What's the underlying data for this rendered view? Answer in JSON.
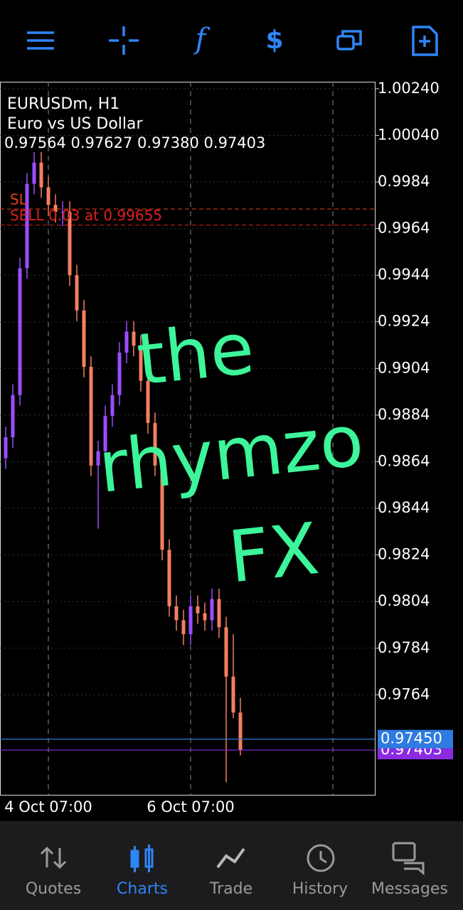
{
  "chart_data": {
    "type": "candlestick",
    "symbol": "EURUSDm, H1",
    "description": "Euro vs US Dollar",
    "ohlc_text": "0.97564 0.97627 0.97380 0.97403",
    "up_color": "#9b4dff",
    "down_color": "#f27f60",
    "grid": true,
    "ylim": [
      0.97211,
      1.0027
    ],
    "yticks": [
      {
        "value": 1.0024,
        "label": "1.00240"
      },
      {
        "value": 1.0004,
        "label": "1.00040"
      },
      0.9984,
      0.9964,
      0.9944,
      0.9924,
      0.9904,
      0.9884,
      0.9864,
      0.9844,
      0.9824,
      0.9804,
      0.9784,
      0.9764
    ],
    "categories": [
      null,
      null,
      null,
      null,
      null,
      null,
      "4 Oct 07:00",
      null,
      null,
      null,
      null,
      null,
      null,
      null,
      null,
      null,
      null,
      null,
      null,
      null,
      null,
      null,
      null,
      null,
      null,
      null,
      "6 Oct 07:00",
      null,
      null,
      null,
      null,
      null,
      null,
      null
    ],
    "candles": [
      [
        0.98655,
        0.9879,
        0.98609,
        0.98745
      ],
      [
        0.98745,
        0.98972,
        0.987,
        0.98926
      ],
      [
        0.98926,
        0.99515,
        0.98881,
        0.9947
      ],
      [
        0.9947,
        0.99878,
        0.99425,
        0.99832
      ],
      [
        0.99832,
        0.99968,
        0.99787,
        0.99923
      ],
      [
        0.99923,
        0.99968,
        0.99772,
        0.99817
      ],
      [
        0.99817,
        0.99863,
        0.99696,
        0.99742
      ],
      [
        0.99742,
        0.99787,
        0.99666,
        0.99712
      ],
      [
        0.99712,
        0.99757,
        0.99651,
        0.99712
      ],
      [
        0.99712,
        0.99757,
        0.99394,
        0.9944
      ],
      [
        0.9944,
        0.99485,
        0.99243,
        0.99289
      ],
      [
        0.99289,
        0.99334,
        0.99002,
        0.99047
      ],
      [
        0.99047,
        0.99092,
        0.98579,
        0.98624
      ],
      [
        0.98624,
        0.9873,
        0.98353,
        0.98685
      ],
      [
        0.98685,
        0.98881,
        0.98639,
        0.98836
      ],
      [
        0.98836,
        0.98972,
        0.9879,
        0.98926
      ],
      [
        0.98926,
        0.99153,
        0.98881,
        0.99108
      ],
      [
        0.99108,
        0.99243,
        0.99062,
        0.99198
      ],
      [
        0.99198,
        0.99243,
        0.99092,
        0.99138
      ],
      [
        0.99138,
        0.99183,
        0.98941,
        0.98987
      ],
      [
        0.98987,
        0.99032,
        0.9876,
        0.98806
      ],
      [
        0.98806,
        0.98851,
        0.98579,
        0.98624
      ],
      [
        0.98624,
        0.9867,
        0.98217,
        0.98262
      ],
      [
        0.98262,
        0.98307,
        0.97975,
        0.9802
      ],
      [
        0.9802,
        0.98066,
        0.97915,
        0.9796
      ],
      [
        0.9796,
        0.98005,
        0.97854,
        0.979
      ],
      [
        0.979,
        0.98066,
        0.97854,
        0.9802
      ],
      [
        0.9802,
        0.98066,
        0.97945,
        0.9799
      ],
      [
        0.9799,
        0.98035,
        0.97915,
        0.9796
      ],
      [
        0.9796,
        0.98096,
        0.97915,
        0.98051
      ],
      [
        0.98051,
        0.98096,
        0.97884,
        0.9793
      ],
      [
        0.9793,
        0.97975,
        0.97265,
        0.97718
      ],
      [
        0.97718,
        0.979,
        0.9754,
        0.97564
      ],
      [
        0.97564,
        0.97627,
        0.9738,
        0.97403
      ]
    ],
    "levels": [
      {
        "value": 0.99724,
        "label": "SL",
        "color": "#e8401c"
      },
      {
        "value": 0.99655,
        "label": "SELL 0.03 at 0.99655",
        "color": "#e02020"
      }
    ],
    "price_lines": [
      {
        "value": 0.9745,
        "label": "0.97450",
        "color": "#2f7be0"
      },
      {
        "value": 0.97403,
        "label": "0.97403",
        "color": "#8a2be2"
      }
    ]
  },
  "watermark": [
    "the",
    "rhymzo",
    "FX"
  ],
  "nav": [
    "Quotes",
    "Charts",
    "Trade",
    "History",
    "Messages"
  ]
}
